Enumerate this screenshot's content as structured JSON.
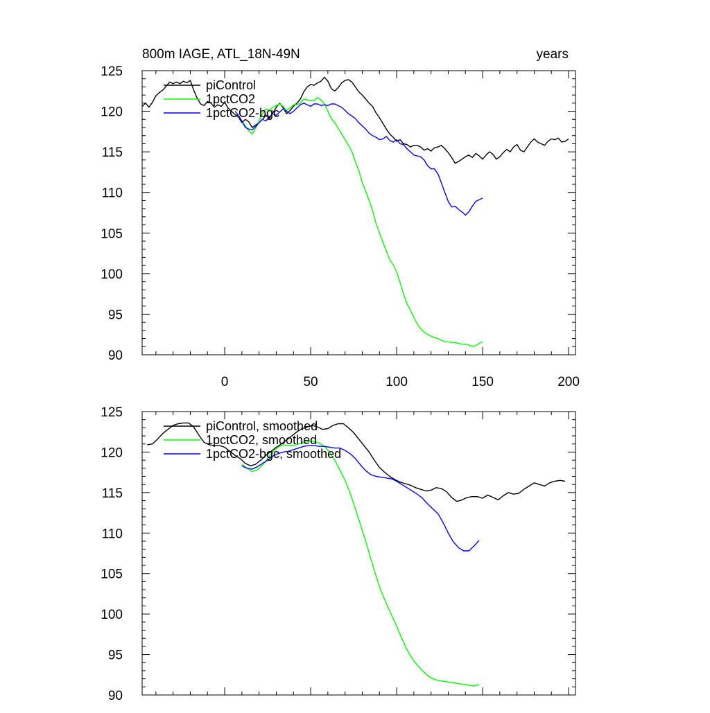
{
  "chart_data": [
    {
      "type": "line",
      "title_left": "800m IAGE, ATL_18N-49N",
      "title_right": "years",
      "xlabel": "",
      "ylabel": "",
      "xlim": [
        -48,
        204
      ],
      "ylim": [
        90,
        125
      ],
      "xticks": [
        0,
        50,
        100,
        150,
        200
      ],
      "xtick_labels": [
        "0",
        "50",
        "100",
        "150",
        "200"
      ],
      "yticks": [
        90,
        95,
        100,
        105,
        110,
        115,
        120,
        125
      ],
      "ytick_labels": [
        "90",
        "95",
        "100",
        "105",
        "110",
        "115",
        "120",
        "125"
      ],
      "grid": false,
      "legend": "top-left",
      "series": [
        {
          "name": "piControl",
          "color": "#000000",
          "x": [
            -48,
            -46,
            -44,
            -42,
            -40,
            -38,
            -36,
            -34,
            -32,
            -30,
            -28,
            -26,
            -24,
            -22,
            -20,
            -18,
            -16,
            -14,
            -12,
            -10,
            -8,
            -6,
            -4,
            -2,
            0,
            2,
            4,
            6,
            8,
            10,
            12,
            14,
            16,
            18,
            20,
            22,
            24,
            26,
            28,
            30,
            32,
            34,
            36,
            38,
            40,
            42,
            44,
            46,
            48,
            50,
            52,
            54,
            56,
            58,
            60,
            62,
            64,
            66,
            68,
            70,
            72,
            74,
            76,
            78,
            80,
            82,
            84,
            86,
            88,
            90,
            92,
            94,
            96,
            98,
            100,
            102,
            104,
            106,
            108,
            110,
            112,
            114,
            116,
            118,
            120,
            122,
            124,
            126,
            128,
            130,
            132,
            134,
            136,
            138,
            140,
            142,
            144,
            146,
            148,
            150,
            152,
            154,
            156,
            158,
            160,
            162,
            164,
            166,
            168,
            170,
            172,
            174,
            176,
            178,
            180,
            182,
            184,
            186,
            188,
            190,
            192,
            194,
            196,
            198,
            200
          ],
          "y": [
            120.6,
            121.0,
            120.5,
            121.1,
            121.9,
            122.3,
            122.6,
            123.1,
            123.6,
            123.4,
            123.6,
            123.4,
            123.7,
            123.5,
            123.8,
            122.6,
            121.6,
            120.9,
            120.7,
            121.2,
            121.0,
            120.5,
            120.8,
            120.6,
            121.1,
            120.4,
            120.0,
            119.6,
            119.3,
            118.6,
            119.0,
            118.7,
            118.0,
            118.3,
            118.6,
            119.0,
            119.5,
            119.1,
            119.8,
            120.5,
            121.0,
            120.4,
            119.7,
            120.1,
            120.6,
            121.0,
            121.5,
            122.4,
            123.0,
            123.3,
            123.2,
            123.5,
            123.7,
            124.2,
            123.7,
            122.8,
            122.5,
            122.9,
            123.5,
            123.8,
            123.9,
            123.6,
            123.0,
            122.4,
            122.0,
            121.5,
            121.0,
            120.6,
            119.8,
            119.2,
            118.5,
            117.8,
            117.2,
            116.8,
            116.3,
            116.5,
            116.0,
            115.9,
            115.6,
            115.8,
            115.8,
            115.6,
            115.2,
            115.4,
            115.1,
            115.5,
            115.6,
            115.8,
            115.4,
            114.9,
            114.3,
            113.6,
            113.8,
            114.1,
            114.4,
            114.6,
            114.3,
            114.8,
            114.5,
            114.1,
            114.6,
            115.0,
            114.7,
            114.1,
            114.4,
            114.9,
            115.3,
            115.0,
            115.6,
            115.9,
            115.2,
            115.0,
            115.6,
            116.2,
            116.6,
            116.2,
            116.0,
            115.8,
            116.3,
            116.6,
            116.5,
            116.7,
            116.2,
            116.3,
            116.6
          ]
        },
        {
          "name": "1pctCO2",
          "color": "#00ff00",
          "x": [
            10,
            12,
            14,
            16,
            18,
            20,
            22,
            24,
            26,
            28,
            30,
            32,
            34,
            36,
            38,
            40,
            42,
            44,
            46,
            48,
            50,
            52,
            54,
            56,
            58,
            60,
            62,
            64,
            66,
            68,
            70,
            72,
            74,
            76,
            78,
            80,
            82,
            84,
            86,
            88,
            90,
            92,
            94,
            96,
            98,
            100,
            102,
            104,
            106,
            108,
            110,
            112,
            114,
            116,
            118,
            120,
            122,
            124,
            126,
            128,
            130,
            132,
            134,
            136,
            138,
            140,
            142,
            144,
            146,
            148,
            150
          ],
          "y": [
            118.8,
            118.2,
            117.6,
            117.2,
            117.9,
            118.8,
            119.7,
            120.3,
            120.1,
            120.5,
            120.7,
            120.9,
            120.6,
            120.1,
            120.4,
            120.8,
            120.8,
            121.0,
            121.5,
            121.4,
            121.3,
            121.3,
            121.7,
            121.4,
            120.9,
            120.0,
            119.1,
            118.6,
            117.9,
            117.2,
            116.5,
            115.8,
            115.0,
            113.8,
            112.7,
            111.2,
            110.2,
            109.0,
            107.8,
            106.2,
            105.0,
            103.9,
            102.8,
            101.7,
            101.1,
            100.2,
            98.9,
            97.5,
            96.3,
            95.5,
            94.6,
            93.8,
            93.2,
            92.8,
            92.5,
            92.3,
            92.1,
            92.0,
            91.8,
            91.6,
            91.6,
            91.5,
            91.5,
            91.4,
            91.3,
            91.3,
            91.2,
            91.0,
            91.1,
            91.4,
            91.6
          ]
        },
        {
          "name": "1pctCO2-bgc",
          "color": "#0000ff",
          "x": [
            6,
            8,
            10,
            12,
            14,
            16,
            18,
            20,
            22,
            24,
            26,
            28,
            30,
            32,
            34,
            36,
            38,
            40,
            42,
            44,
            46,
            48,
            50,
            52,
            54,
            56,
            58,
            60,
            62,
            64,
            66,
            68,
            70,
            72,
            74,
            76,
            78,
            80,
            82,
            84,
            86,
            88,
            90,
            92,
            94,
            96,
            98,
            100,
            102,
            104,
            106,
            108,
            110,
            112,
            114,
            116,
            118,
            120,
            122,
            124,
            126,
            128,
            130,
            132,
            134,
            136,
            138,
            140,
            142,
            144,
            146,
            148,
            150
          ],
          "y": [
            120.0,
            119.5,
            118.8,
            118.0,
            117.8,
            117.7,
            118.1,
            118.6,
            119.0,
            118.8,
            119.3,
            119.7,
            119.5,
            119.9,
            120.3,
            120.0,
            119.7,
            120.0,
            120.4,
            120.8,
            121.0,
            120.8,
            120.6,
            120.9,
            120.9,
            120.7,
            120.8,
            120.7,
            120.9,
            120.9,
            120.7,
            120.5,
            120.1,
            119.7,
            119.4,
            119.1,
            118.6,
            118.2,
            117.8,
            117.3,
            117.0,
            116.8,
            116.5,
            116.6,
            116.9,
            116.4,
            116.2,
            116.5,
            116.0,
            115.9,
            115.4,
            115.0,
            114.6,
            114.5,
            114.4,
            114.0,
            113.3,
            112.9,
            112.9,
            112.3,
            111.2,
            110.0,
            108.9,
            108.2,
            108.3,
            107.9,
            107.6,
            107.2,
            107.6,
            108.3,
            108.9,
            109.1,
            109.3
          ]
        }
      ]
    },
    {
      "type": "line",
      "title_left": "",
      "title_right": "",
      "xlabel": "",
      "ylabel": "",
      "xlim": [
        -48,
        204
      ],
      "ylim": [
        90,
        125
      ],
      "xticks": [
        0,
        50,
        100,
        150,
        200
      ],
      "xtick_labels": [],
      "yticks": [
        90,
        95,
        100,
        105,
        110,
        115,
        120,
        125
      ],
      "ytick_labels": [
        "90",
        "95",
        "100",
        "105",
        "110",
        "115",
        "120",
        "125"
      ],
      "grid": false,
      "legend": "top-left",
      "series": [
        {
          "name": "piControl, smoothed",
          "color": "#000000",
          "x": [
            -45,
            -42,
            -39,
            -36,
            -33,
            -30,
            -27,
            -24,
            -21,
            -18,
            -15,
            -12,
            -9,
            -6,
            -3,
            0,
            3,
            6,
            9,
            12,
            15,
            18,
            21,
            24,
            27,
            30,
            33,
            36,
            39,
            42,
            45,
            48,
            51,
            54,
            57,
            60,
            63,
            66,
            69,
            72,
            75,
            78,
            81,
            84,
            87,
            90,
            93,
            96,
            99,
            102,
            105,
            108,
            111,
            114,
            117,
            120,
            123,
            126,
            129,
            132,
            135,
            138,
            141,
            144,
            147,
            150,
            153,
            156,
            159,
            162,
            165,
            168,
            171,
            174,
            177,
            180,
            183,
            186,
            189,
            192,
            195,
            198
          ],
          "y": [
            120.9,
            121.0,
            121.6,
            122.3,
            122.8,
            123.3,
            123.5,
            123.6,
            123.6,
            123.1,
            122.1,
            121.2,
            120.9,
            120.8,
            120.8,
            120.6,
            120.1,
            119.6,
            119.2,
            118.6,
            118.3,
            118.5,
            119.0,
            119.6,
            120.1,
            120.6,
            121.0,
            121.5,
            122.0,
            122.5,
            122.9,
            123.1,
            123.3,
            123.1,
            122.8,
            122.9,
            123.3,
            123.5,
            123.5,
            123.0,
            122.4,
            121.6,
            120.8,
            120.0,
            119.0,
            118.1,
            117.5,
            117.0,
            116.6,
            116.3,
            116.1,
            115.9,
            115.6,
            115.4,
            115.2,
            115.3,
            115.6,
            115.5,
            115.1,
            114.4,
            113.9,
            114.1,
            114.4,
            114.5,
            114.5,
            114.3,
            114.7,
            114.4,
            114.1,
            114.6,
            115.0,
            114.8,
            114.9,
            115.4,
            115.8,
            116.2,
            116.0,
            115.8,
            116.2,
            116.4,
            116.5,
            116.4
          ]
        },
        {
          "name": "1pctCO2, smoothed",
          "color": "#00ff00",
          "x": [
            10,
            13,
            16,
            19,
            22,
            25,
            28,
            31,
            34,
            37,
            40,
            43,
            46,
            49,
            52,
            55,
            58,
            61,
            64,
            67,
            70,
            73,
            76,
            79,
            82,
            85,
            88,
            91,
            94,
            97,
            100,
            103,
            106,
            109,
            112,
            115,
            118,
            121,
            124,
            127,
            130,
            133,
            136,
            139,
            142,
            145,
            148
          ],
          "y": [
            118.5,
            118.0,
            117.6,
            117.8,
            118.4,
            119.2,
            120.0,
            120.6,
            120.9,
            120.8,
            120.8,
            121.0,
            121.2,
            121.3,
            121.3,
            121.1,
            120.7,
            120.0,
            119.0,
            117.8,
            116.5,
            114.9,
            113.0,
            111.0,
            109.0,
            106.8,
            104.7,
            102.8,
            101.3,
            99.9,
            98.5,
            97.0,
            95.6,
            94.5,
            93.7,
            93.0,
            92.4,
            92.0,
            91.8,
            91.7,
            91.6,
            91.5,
            91.4,
            91.3,
            91.2,
            91.1,
            91.3
          ]
        },
        {
          "name": "1pctCO2-bgc, smoothed",
          "color": "#0000ff",
          "x": [
            10,
            13,
            16,
            19,
            22,
            25,
            28,
            31,
            34,
            37,
            40,
            43,
            46,
            49,
            52,
            55,
            58,
            61,
            64,
            67,
            70,
            73,
            76,
            79,
            82,
            85,
            88,
            91,
            94,
            97,
            100,
            103,
            106,
            109,
            112,
            115,
            118,
            121,
            124,
            127,
            130,
            133,
            136,
            139,
            142,
            145,
            148
          ],
          "y": [
            118.3,
            118.0,
            117.9,
            118.2,
            118.6,
            119.0,
            119.5,
            119.8,
            120.0,
            120.1,
            120.3,
            120.5,
            120.7,
            120.8,
            120.8,
            120.7,
            120.7,
            120.6,
            120.5,
            120.5,
            120.2,
            119.8,
            119.2,
            118.4,
            117.7,
            117.2,
            117.0,
            116.9,
            116.8,
            116.7,
            116.4,
            116.0,
            115.6,
            115.2,
            114.8,
            114.3,
            113.6,
            113.0,
            112.4,
            111.3,
            110.0,
            108.9,
            108.2,
            107.8,
            107.8,
            108.4,
            109.1
          ]
        }
      ]
    }
  ]
}
